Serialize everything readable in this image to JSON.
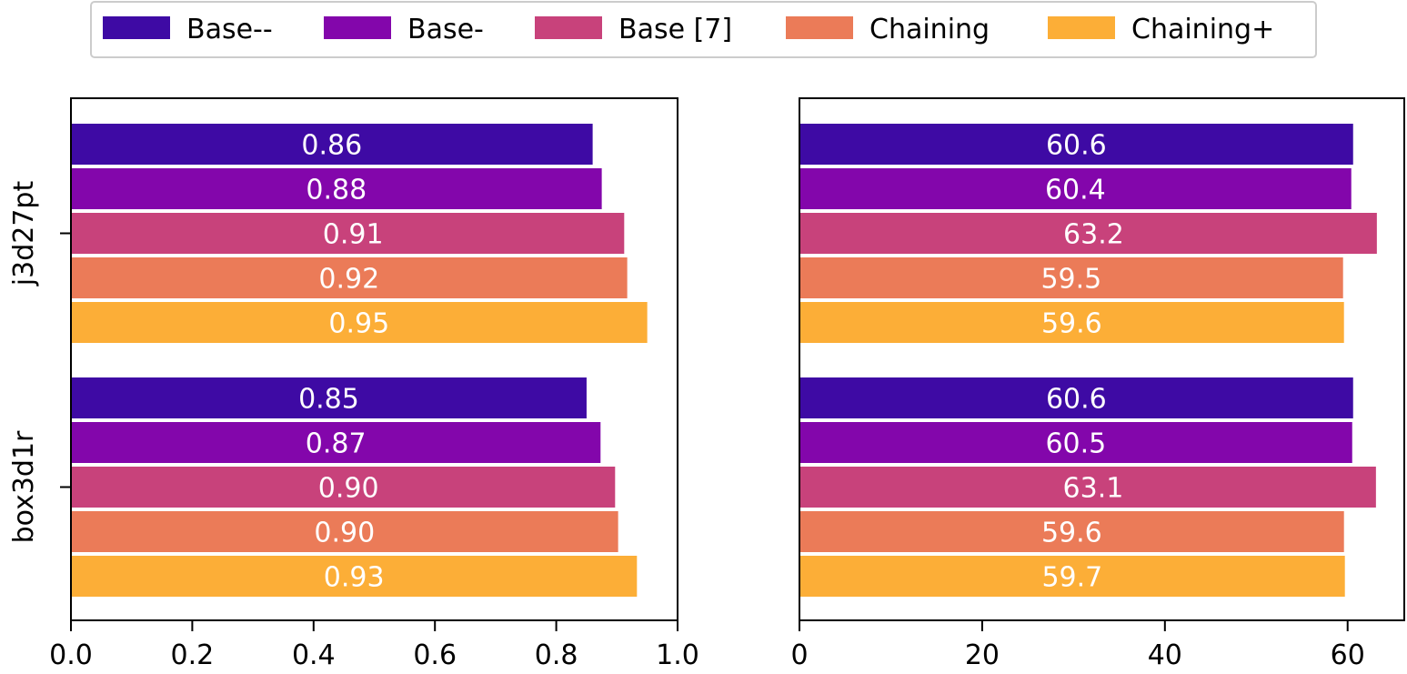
{
  "colors": {
    "series": [
      "#3e0aa4",
      "#8306ab",
      "#c8427b",
      "#eb7b58",
      "#fcae37"
    ],
    "label": "#ffffff",
    "axis": "#000000"
  },
  "chart_data": [
    {
      "type": "bar",
      "orientation": "horizontal",
      "categories": [
        "j3d27pt",
        "box3d1r"
      ],
      "series": [
        {
          "name": "Base--",
          "values": [
            0.86,
            0.85
          ],
          "labels": [
            "0.86",
            "0.85"
          ]
        },
        {
          "name": "Base-",
          "values": [
            0.875,
            0.873
          ],
          "labels": [
            "0.88",
            "0.87"
          ]
        },
        {
          "name": "Base [7]",
          "values": [
            0.912,
            0.897
          ],
          "labels": [
            "0.91",
            "0.90"
          ]
        },
        {
          "name": "Chaining",
          "values": [
            0.917,
            0.902
          ],
          "labels": [
            "0.92",
            "0.90"
          ]
        },
        {
          "name": "Chaining+",
          "values": [
            0.95,
            0.933
          ],
          "labels": [
            "0.95",
            "0.93"
          ]
        }
      ],
      "xlim": [
        0,
        1.0
      ],
      "xticks": [
        "0.0",
        "0.2",
        "0.4",
        "0.6",
        "0.8",
        "1.0"
      ],
      "xtick_values": [
        0,
        0.2,
        0.4,
        0.6,
        0.8,
        1.0
      ],
      "legend": "top-center"
    },
    {
      "type": "bar",
      "orientation": "horizontal",
      "categories": [
        "j3d27pt",
        "box3d1r"
      ],
      "series": [
        {
          "name": "Base--",
          "values": [
            60.6,
            60.6
          ],
          "labels": [
            "60.6",
            "60.6"
          ]
        },
        {
          "name": "Base-",
          "values": [
            60.4,
            60.5
          ],
          "labels": [
            "60.4",
            "60.5"
          ]
        },
        {
          "name": "Base [7]",
          "values": [
            63.2,
            63.1
          ],
          "labels": [
            "63.2",
            "63.1"
          ]
        },
        {
          "name": "Chaining",
          "values": [
            59.5,
            59.6
          ],
          "labels": [
            "59.5",
            "59.6"
          ]
        },
        {
          "name": "Chaining+",
          "values": [
            59.6,
            59.7
          ],
          "labels": [
            "59.6",
            "59.7"
          ]
        }
      ],
      "xlim": [
        0,
        66.2
      ],
      "xticks": [
        "0",
        "20",
        "40",
        "60"
      ],
      "xtick_values": [
        0,
        20,
        40,
        60
      ],
      "show_category_labels": false
    }
  ]
}
